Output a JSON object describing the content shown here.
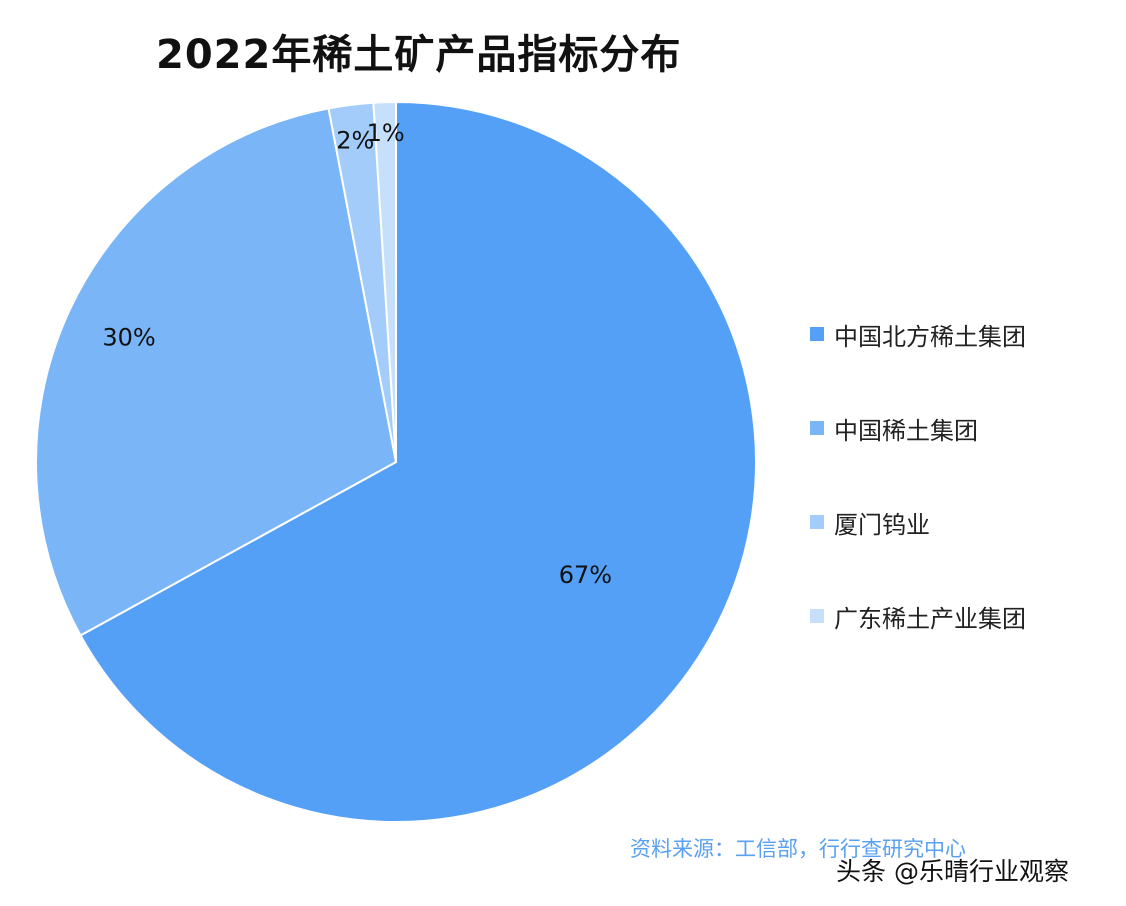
{
  "title": "2022年稀土矿产品指标分布",
  "chart_data": {
    "type": "pie",
    "title": "2022年稀土矿产品指标分布",
    "slices": [
      {
        "name": "中国北方稀土集团",
        "value": 67,
        "label": "67%",
        "color": "#54a0f7"
      },
      {
        "name": "中国稀土集团",
        "value": 30,
        "label": "30%",
        "color": "#7ab5f8"
      },
      {
        "name": "厦门钨业",
        "value": 2,
        "label": "2%",
        "color": "#a3ccfa"
      },
      {
        "name": "广东稀土产业集团",
        "value": 1,
        "label": "1%",
        "color": "#c6e0fc"
      }
    ],
    "legend_position": "right"
  },
  "legend": [
    {
      "label": "中国北方稀土集团",
      "color": "#54a0f7"
    },
    {
      "label": "中国稀土集团",
      "color": "#7ab5f8"
    },
    {
      "label": "厦门钨业",
      "color": "#a3ccfa"
    },
    {
      "label": "广东稀土产业集团",
      "color": "#c6e0fc"
    }
  ],
  "source": "资料来源：工信部，行行查研究中心",
  "watermark": "头条 @乐晴行业观察"
}
